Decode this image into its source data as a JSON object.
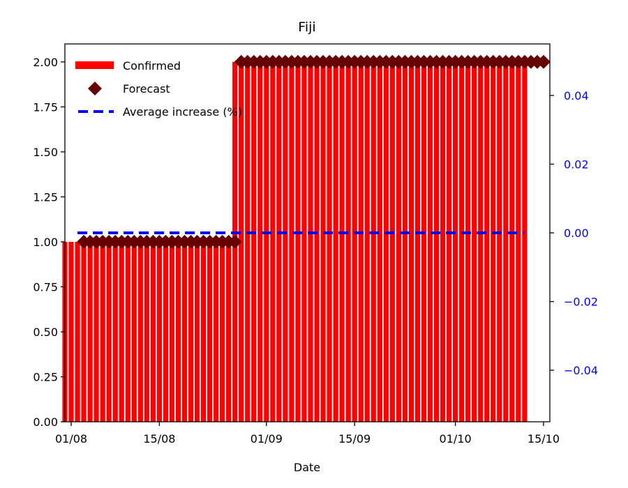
{
  "chart_data": {
    "type": "bar",
    "title": "Fiji",
    "xlabel": "Date",
    "ylabel": "",
    "y2label": "",
    "x_tick_labels": [
      "01/08",
      "15/08",
      "01/09",
      "15/09",
      "01/10",
      "15/10"
    ],
    "x_tick_dates": [
      "2020-08-01",
      "2020-08-15",
      "2020-09-01",
      "2020-09-15",
      "2020-10-01",
      "2020-10-15"
    ],
    "xlim": [
      "2020-07-31",
      "2020-10-16"
    ],
    "ylim": [
      0,
      2.1
    ],
    "y_ticks": [
      0.0,
      0.25,
      0.5,
      0.75,
      1.0,
      1.25,
      1.5,
      1.75,
      2.0
    ],
    "y_tick_labels": [
      "0.00",
      "0.25",
      "0.50",
      "0.75",
      "1.00",
      "1.25",
      "1.50",
      "1.75",
      "2.00"
    ],
    "y2lim": [
      -0.055,
      0.055
    ],
    "y2_ticks": [
      -0.04,
      -0.02,
      0.0,
      0.02,
      0.04
    ],
    "y2_tick_labels": [
      "−0.04",
      "−0.02",
      "0.00",
      "0.02",
      "0.04"
    ],
    "legend_position": "top-left",
    "series": [
      {
        "name": "Confirmed",
        "kind": "bar",
        "color": "#ff0000",
        "points": [
          {
            "start": "2020-07-31",
            "end": "2020-08-26",
            "value": 1
          },
          {
            "start": "2020-08-27",
            "end": "2020-10-12",
            "value": 2
          }
        ]
      },
      {
        "name": "Forecast",
        "kind": "marker",
        "marker": "diamond",
        "color": "#660000",
        "points": [
          {
            "start": "2020-08-03",
            "end": "2020-08-27",
            "value": 1
          },
          {
            "start": "2020-08-28",
            "end": "2020-10-15",
            "value": 2
          }
        ]
      },
      {
        "name": "Average increase (%)",
        "kind": "dashed-line",
        "axis": "right",
        "color": "#0000ff",
        "x": [
          "2020-08-02",
          "2020-10-12"
        ],
        "value": 0.0
      }
    ]
  }
}
